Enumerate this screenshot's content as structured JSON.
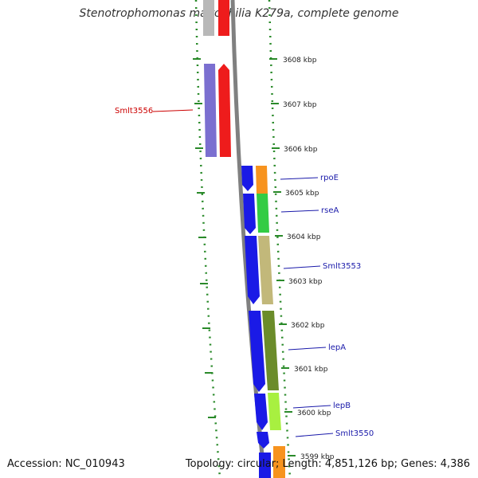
{
  "title": "Stenotrophomonas maltophilia K279a, complete genome",
  "footer": {
    "accession": "Accession: NC_010943",
    "summary": "Topology: circular; Length: 4,851,126 bp; Genes: 4,386"
  },
  "colors": {
    "grey": "#b8b8b8",
    "red": "#ee1c1c",
    "purple": "#7b6fd0",
    "blue": "#1a1ae6",
    "orange": "#f7931e",
    "green": "#33cc44",
    "khaki": "#c2b87a",
    "olive": "#6b8c2a",
    "lime": "#a8f040",
    "backbone": "#808080",
    "dots": "#2a8a2a",
    "label_red": "#cc0000",
    "label_blue": "#1a1aaa"
  },
  "ticks": [
    {
      "label": "3608 kbp"
    },
    {
      "label": "3607 kbp"
    },
    {
      "label": "3606 kbp"
    },
    {
      "label": "3605 kbp"
    },
    {
      "label": "3604 kbp"
    },
    {
      "label": "3603 kbp"
    },
    {
      "label": "3602 kbp"
    },
    {
      "label": "3601 kbp"
    },
    {
      "label": "3600 kbp"
    },
    {
      "label": "3599 kbp"
    }
  ],
  "genes": [
    {
      "label": "Smlt3556"
    },
    {
      "label": "rpoE"
    },
    {
      "label": "rseA"
    },
    {
      "label": "Smlt3553"
    },
    {
      "label": "lepA"
    },
    {
      "label": "lepB"
    },
    {
      "label": "Smlt3550"
    }
  ]
}
